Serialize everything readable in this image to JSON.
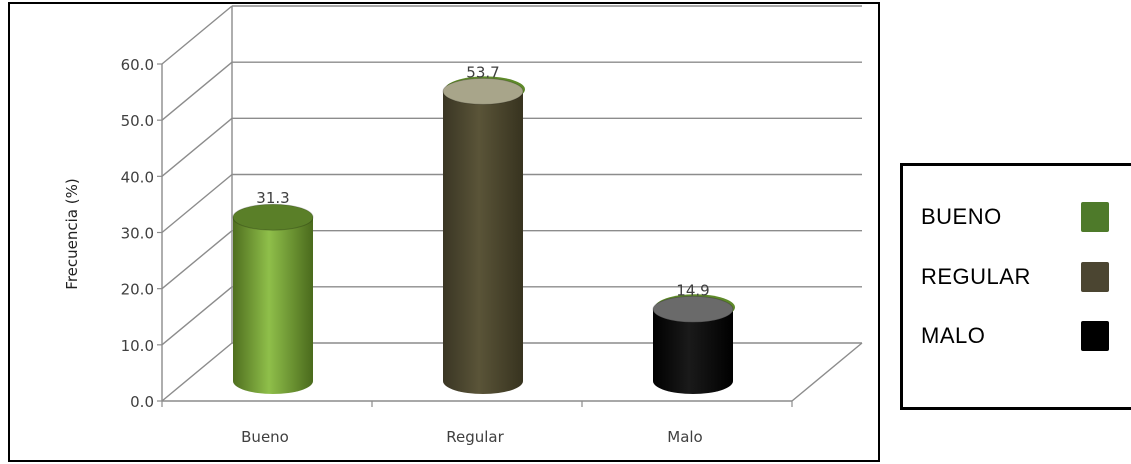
{
  "chart_data": {
    "type": "bar",
    "style": "3d-cylinder",
    "categories": [
      "Bueno",
      "Regular",
      "Malo"
    ],
    "values": [
      31.3,
      53.7,
      14.9
    ],
    "value_labels": [
      "31.3",
      "53.7",
      "14.9"
    ],
    "ylabel": "Frecuencia (%)",
    "ylim": [
      0,
      60
    ],
    "yticks": [
      "0.0",
      "10.0",
      "20.0",
      "30.0",
      "40.0",
      "50.0",
      "60.0"
    ],
    "grid": true,
    "colors": [
      "#6b8f2e",
      "#4a4530",
      "#000000"
    ],
    "legend": {
      "placement": "right",
      "entries": [
        {
          "label": "BUENO",
          "color": "#4e7a2a"
        },
        {
          "label": "REGULAR",
          "color": "#4b4531"
        },
        {
          "label": "MALO",
          "color": "#000000"
        }
      ]
    }
  }
}
